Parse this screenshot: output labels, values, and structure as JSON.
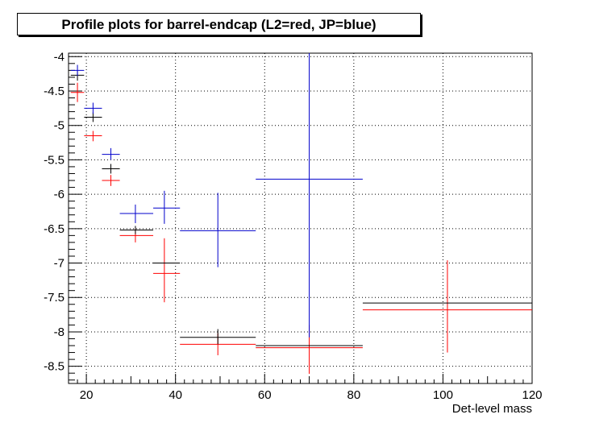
{
  "chart_data": {
    "type": "scatter",
    "title": "Profile plots for barrel-endcap (L2=red, JP=blue)",
    "xlabel": "Det-level mass",
    "ylabel": "",
    "xlim": [
      16,
      120
    ],
    "ylim": [
      -8.75,
      -3.95
    ],
    "x_ticks": [
      20,
      40,
      60,
      80,
      100,
      120
    ],
    "y_ticks": [
      -4,
      -4.5,
      -5,
      -5.5,
      -6,
      -6.5,
      -7,
      -7.5,
      -8,
      -8.5
    ],
    "grid": true,
    "series": [
      {
        "color": "#ff0000",
        "points": [
          {
            "x": 18.0,
            "xlo": 16.5,
            "xhi": 19.5,
            "y": -4.52,
            "ylo": -4.66,
            "yhi": -4.38
          },
          {
            "x": 21.5,
            "xlo": 19.5,
            "xhi": 23.5,
            "y": -5.15,
            "ylo": -5.23,
            "yhi": -5.08
          },
          {
            "x": 25.5,
            "xlo": 23.5,
            "xhi": 27.5,
            "y": -5.8,
            "ylo": -5.88,
            "yhi": -5.72
          },
          {
            "x": 31.0,
            "xlo": 27.5,
            "xhi": 35.0,
            "y": -6.6,
            "ylo": -6.7,
            "yhi": -6.5
          },
          {
            "x": 37.5,
            "xlo": 35.0,
            "xhi": 41.0,
            "y": -7.15,
            "ylo": -7.57,
            "yhi": -6.64
          },
          {
            "x": 49.5,
            "xlo": 41.0,
            "xhi": 58.0,
            "y": -8.18,
            "ylo": -8.34,
            "yhi": -8.02
          },
          {
            "x": 70.0,
            "xlo": 58.0,
            "xhi": 82.0,
            "y": -8.23,
            "ylo": -8.61,
            "yhi": -7.9
          },
          {
            "x": 101.0,
            "xlo": 82.0,
            "xhi": 120.0,
            "y": -7.68,
            "ylo": -8.3,
            "yhi": -6.96
          }
        ]
      },
      {
        "color": "#000000",
        "points": [
          {
            "x": 18.0,
            "xlo": 16.5,
            "xhi": 19.5,
            "y": -4.27,
            "ylo": -4.35,
            "yhi": -4.2
          },
          {
            "x": 21.5,
            "xlo": 19.5,
            "xhi": 23.5,
            "y": -4.88,
            "ylo": -4.95,
            "yhi": -4.81
          },
          {
            "x": 25.5,
            "xlo": 23.5,
            "xhi": 27.5,
            "y": -5.63,
            "ylo": -5.7,
            "yhi": -5.56
          },
          {
            "x": 31.0,
            "xlo": 27.5,
            "xhi": 35.0,
            "y": -6.52,
            "ylo": -6.58,
            "yhi": -6.46
          },
          {
            "x": 37.5,
            "xlo": 35.0,
            "xhi": 41.0,
            "y": -7.0,
            "ylo": -7.0,
            "yhi": -7.0
          },
          {
            "x": 49.5,
            "xlo": 41.0,
            "xhi": 58.0,
            "y": -8.08,
            "ylo": -8.18,
            "yhi": -7.96
          },
          {
            "x": 70.0,
            "xlo": 58.0,
            "xhi": 82.0,
            "y": -8.2,
            "ylo": -8.2,
            "yhi": -8.2
          },
          {
            "x": 101.0,
            "xlo": 82.0,
            "xhi": 120.0,
            "y": -7.58,
            "ylo": -7.58,
            "yhi": -7.58
          }
        ]
      },
      {
        "color": "#0000cc",
        "points": [
          {
            "x": 18.0,
            "xlo": 16.5,
            "xhi": 19.5,
            "y": -4.2,
            "ylo": -4.28,
            "yhi": -4.12
          },
          {
            "x": 21.5,
            "xlo": 19.5,
            "xhi": 23.5,
            "y": -4.75,
            "ylo": -4.83,
            "yhi": -4.67
          },
          {
            "x": 25.5,
            "xlo": 23.5,
            "xhi": 27.5,
            "y": -5.42,
            "ylo": -5.5,
            "yhi": -5.33
          },
          {
            "x": 31.0,
            "xlo": 27.5,
            "xhi": 35.0,
            "y": -6.28,
            "ylo": -6.42,
            "yhi": -6.15
          },
          {
            "x": 37.5,
            "xlo": 35.0,
            "xhi": 41.0,
            "y": -6.2,
            "ylo": -6.43,
            "yhi": -5.95
          },
          {
            "x": 49.5,
            "xlo": 41.0,
            "xhi": 58.0,
            "y": -6.53,
            "ylo": -7.06,
            "yhi": -5.98
          },
          {
            "x": 70.0,
            "xlo": 58.0,
            "xhi": 82.0,
            "y": -5.78,
            "ylo": -8.08,
            "yhi": -3.95
          }
        ]
      }
    ]
  }
}
